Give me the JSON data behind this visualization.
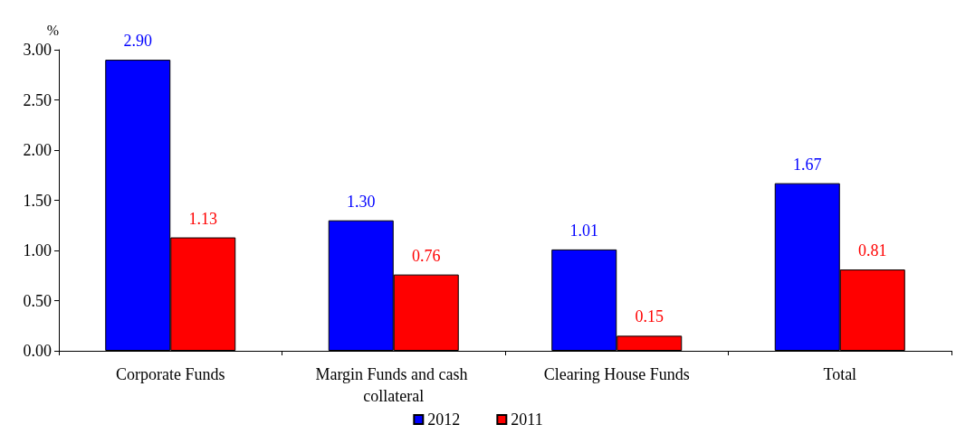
{
  "chart_data": {
    "type": "bar",
    "ylabel": "%",
    "categories": [
      "Corporate Funds",
      "Margin Funds and cash collateral",
      "Clearing House Funds",
      "Total"
    ],
    "series": [
      {
        "name": "2012",
        "color": "#0000ff",
        "values": [
          2.9,
          1.3,
          1.01,
          1.67
        ],
        "value_labels": [
          "2.90",
          "1.30",
          "1.01",
          "1.67"
        ]
      },
      {
        "name": "2011",
        "color": "#ff0000",
        "values": [
          1.13,
          0.76,
          0.15,
          0.81
        ],
        "value_labels": [
          "1.13",
          "0.76",
          "0.15",
          "0.81"
        ]
      }
    ],
    "ylim": [
      0,
      3
    ],
    "yticks": [
      {
        "value": 0,
        "label": "0.00"
      },
      {
        "value": 0.5,
        "label": "0.50"
      },
      {
        "value": 1,
        "label": "1.00"
      },
      {
        "value": 1.5,
        "label": "1.50"
      },
      {
        "value": 2,
        "label": "2.00"
      },
      {
        "value": 2.5,
        "label": "2.50"
      },
      {
        "value": 3,
        "label": "3.00"
      }
    ],
    "grid": false,
    "legend": "bottom"
  }
}
